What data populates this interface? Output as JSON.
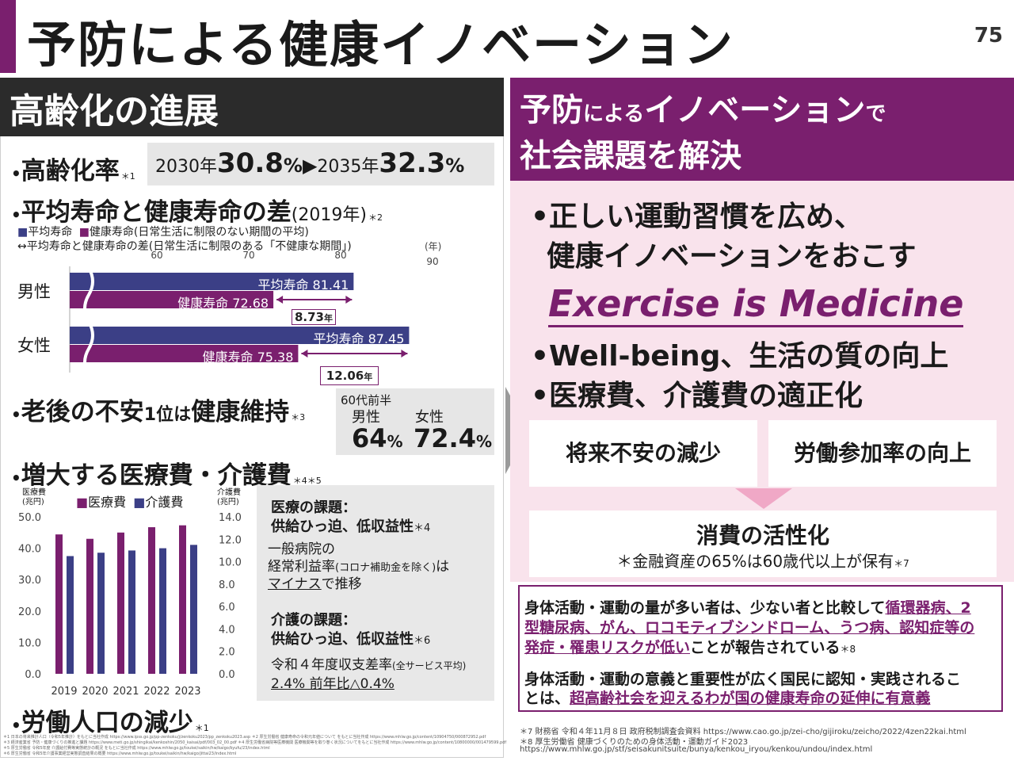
{
  "title": "予防による健康イノベーション",
  "page_number": "75",
  "left": {
    "header": "高齢化の進展",
    "aging": {
      "label": "高齢化率",
      "ref": "＊1",
      "y1_label": "2030年",
      "y1_value": "30.8",
      "pct": "%",
      "arrow": "▶",
      "y2_label": "2035年",
      "y2_value": "32.3"
    },
    "life": {
      "label": "平均寿命と健康寿命の差",
      "year": "(2019年)",
      "ref": "＊2",
      "legend1": "平均寿命",
      "legend2": "健康寿命(日常生活に制限のない期間の平均)",
      "legend3": "↔平均寿命と健康寿命の差(日常生活に制限のある「不健康な期間」)",
      "unit": "(年)",
      "ticks": [
        "60",
        "70",
        "80",
        "90"
      ],
      "male": "男性",
      "female": "女性",
      "male_avg": "平均寿命 81.41",
      "male_healthy": "健康寿命 72.68",
      "male_diff": "8.73",
      "female_avg": "平均寿命 87.45",
      "female_healthy": "健康寿命 75.38",
      "female_diff": "12.06",
      "nen": "年"
    },
    "anxiety": {
      "label_a": "老後の不安",
      "label_b": "1位",
      "label_c": "は",
      "label_d": "健康維持",
      "ref": "＊3",
      "age": "60代前半",
      "male": "男性",
      "female": "女性",
      "male_val": "64",
      "female_val": "72.4",
      "pct": "%"
    },
    "medical": {
      "label": "増大する医療費・介護費",
      "ref": "＊4＊5",
      "yl1": "医療費",
      "yl1u": "(兆円)",
      "yl2": "介護費",
      "yl2u": "(兆円)",
      "legend1": "医療費",
      "legend2": "介護費",
      "issue1_h": "医療の課題：",
      "issue1_s": "供給ひっ迫、低収益性",
      "issue1_ref": "＊4",
      "issue1_t1": "一般病院の",
      "issue1_t2a": "経常利益率",
      "issue1_t2b": "(コロナ補助金を除く)",
      "issue1_t2c": "は",
      "issue1_t3a": "マイナス",
      "issue1_t3b": "で推移",
      "issue2_h": "介護の課題：",
      "issue2_s": "供給ひっ迫、低収益性",
      "issue2_ref": "＊6",
      "issue2_t1a": "令和４年度収支差率",
      "issue2_t1b": "(全サービス平均)",
      "issue2_t2": "2.4% 前年比△0.4%"
    },
    "labor": {
      "label": "労働人口の減少",
      "ref": "＊1"
    },
    "footnotes": [
      "＊1 日本の将来推計人口（令和5年推計）をもとに当社作成 https://www.ipss.go.jp/pp-zenkoku/j/zenkoku2023/pp_zenkoku2023.asp ＊2 厚生労働省 健康寿命の令和元年値について をもとに当社作成 https://www.mhlw.go.jp/content/10904750/000872952.pdf",
      "＊3 経済産業省 予防・健康づくりの推進と課題 https://www.meti.go.jp/shingikai/kenkoshin/2050_kaisai/pdf/003_02_00.pdf ＊4 厚生労働省病院等医療機関 医療機関等を取り巻く状況についてをもとに当社作成 https://www.mhlw.go.jp/content/10800000/001479599.pdf",
      "＊5 厚生労働省 令和5年度 介護給付費等実態統計の概況 をもとに当社作成 https://www.mhlw.go.jp/toukei/saikin/hw/kaigo/kyufu/23/index.html",
      "＊6 厚生労働省 令和5年介護事業経営実態調査結果の概要 https://www.mhlw.go.jp/toukei/saikin/hw/kaigo/jittai23/index.html"
    ]
  },
  "right": {
    "header1a": "予防",
    "header1b": "による",
    "header1c": "イノベーション",
    "header1d": "で",
    "header2": "社会課題を解決",
    "b1_line1": "•正しい運動習慣を広め、",
    "b1_line2": "健康イノベーションをおこす",
    "eim": "Exercise is Medicine",
    "b2": "•Well-being、生活の質の向上",
    "b3": "•医療費、介護費の適正化",
    "box1": "将来不安の減少",
    "box2": "労働参加率の向上",
    "box3_title": "消費の活性化",
    "box3_note": "＊金融資産の65%は60歳代以上が保有",
    "box3_ref": "＊7",
    "ev1_a": "身体活動・運動の量が多い者は、少ない者と比較して",
    "ev1_b": "循環器病、2",
    "ev1_c": "型糖尿病、がん、ロコモティブシンドローム、うつ病、認知症等の",
    "ev1_d": "発症・罹患リスクが低い",
    "ev1_e": "ことが報告されている",
    "ev1_ref": "＊8",
    "ev2_a": "身体活動・運動の意義と重要性が広く国民に認知・実践されるこ",
    "ev2_b": "とは、",
    "ev2_c": "超高齢社会を迎えるわが国の健康寿命の延伸に有意義",
    "foot1": "＊7 財務省 令和４年11月８日 政府税制調査会資料 https://www.cao.go.jp/zei-cho/gijiroku/zeicho/2022/4zen22kai.html",
    "foot2": "＊8 厚生労働省 健康づくりのための身体活動・運動ガイド2023",
    "foot3": "https://www.mhlw.go.jp/stf/seisakunitsuite/bunya/kenkou_iryou/kenkou/undou/index.html"
  },
  "colors": {
    "purple": "#7a1f6e",
    "navy": "#3b3f86",
    "dark": "#2b2b2b",
    "pink_bg": "#f9e3ec",
    "gray_box": "#e6e6e6"
  },
  "chart_data": [
    {
      "type": "bar",
      "categories": [
        "男性",
        "女性"
      ],
      "series": [
        {
          "name": "平均寿命",
          "values": [
            81.41,
            87.45
          ]
        },
        {
          "name": "健康寿命(日常生活に制限のない期間の平均)",
          "values": [
            72.68,
            75.38
          ]
        }
      ],
      "differences": [
        8.73,
        12.06
      ],
      "orientation": "horizontal",
      "xlim": [
        60,
        90
      ],
      "xticks": [
        60,
        70,
        80,
        90
      ],
      "unit": "(年)",
      "grid": false,
      "legend": "top-left"
    },
    {
      "type": "bar",
      "categories": [
        "2019",
        "2020",
        "2021",
        "2022",
        "2023"
      ],
      "series": [
        {
          "name": "医療費",
          "axis": "left",
          "values": [
            44.4,
            43.0,
            45.0,
            46.7,
            47.3
          ]
        },
        {
          "name": "介護費",
          "axis": "right",
          "values": [
            10.5,
            10.8,
            11.0,
            11.2,
            11.5
          ]
        }
      ],
      "ylabel": "医療費(兆円)",
      "y2label": "介護費(兆円)",
      "ylim": [
        0,
        50
      ],
      "y2lim": [
        0,
        14
      ],
      "yticks": [
        "50.0",
        "40.0",
        "30.0",
        "20.0",
        "10.0",
        "0.0"
      ],
      "y2ticks": [
        "14.0",
        "12.0",
        "10.0",
        "8.0",
        "6.0",
        "4.0",
        "2.0",
        "0.0"
      ],
      "grid": false,
      "legend": "top"
    }
  ]
}
